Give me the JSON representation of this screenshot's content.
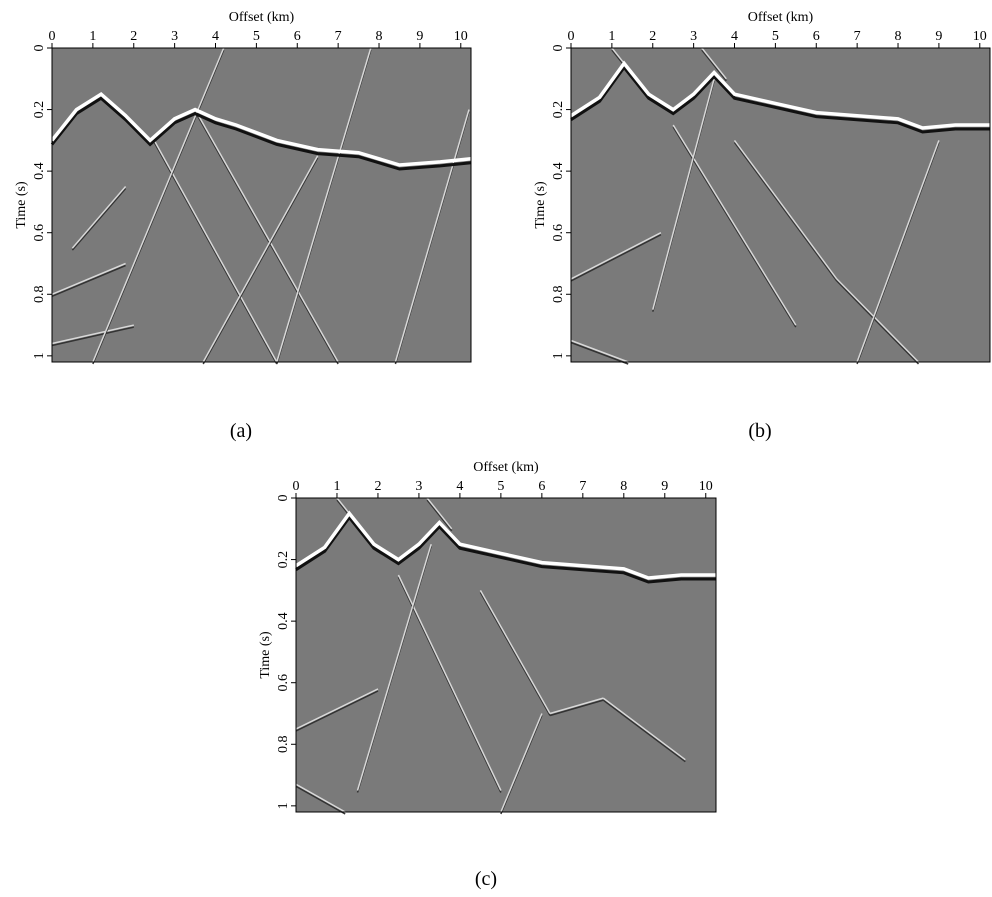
{
  "chart_data": [
    {
      "type": "image",
      "xlabel": "Offset (km)",
      "ylabel": "Time (s)",
      "caption": "(a)",
      "xlim": [
        0,
        10.25
      ],
      "ylim": [
        0,
        1.02
      ],
      "xticks": [
        0,
        1,
        2,
        3,
        4,
        5,
        6,
        7,
        8,
        9,
        10
      ],
      "yticks": [
        0,
        0.2,
        0.4,
        0.6,
        0.8,
        1
      ]
    },
    {
      "type": "image",
      "xlabel": "Offset (km)",
      "ylabel": "Time (s)",
      "caption": "(b)",
      "xlim": [
        0,
        10.25
      ],
      "ylim": [
        0,
        1.02
      ],
      "xticks": [
        0,
        1,
        2,
        3,
        4,
        5,
        6,
        7,
        8,
        9,
        10
      ],
      "yticks": [
        0,
        0.2,
        0.4,
        0.6,
        0.8,
        1
      ]
    },
    {
      "type": "image",
      "xlabel": "Offset (km)",
      "ylabel": "Time (s)",
      "caption": "(c)",
      "xlim": [
        0,
        10.25
      ],
      "ylim": [
        0,
        1.02
      ],
      "xticks": [
        0,
        1,
        2,
        3,
        4,
        5,
        6,
        7,
        8,
        9,
        10
      ],
      "yticks": [
        0,
        0.2,
        0.4,
        0.6,
        0.8,
        1
      ]
    }
  ]
}
